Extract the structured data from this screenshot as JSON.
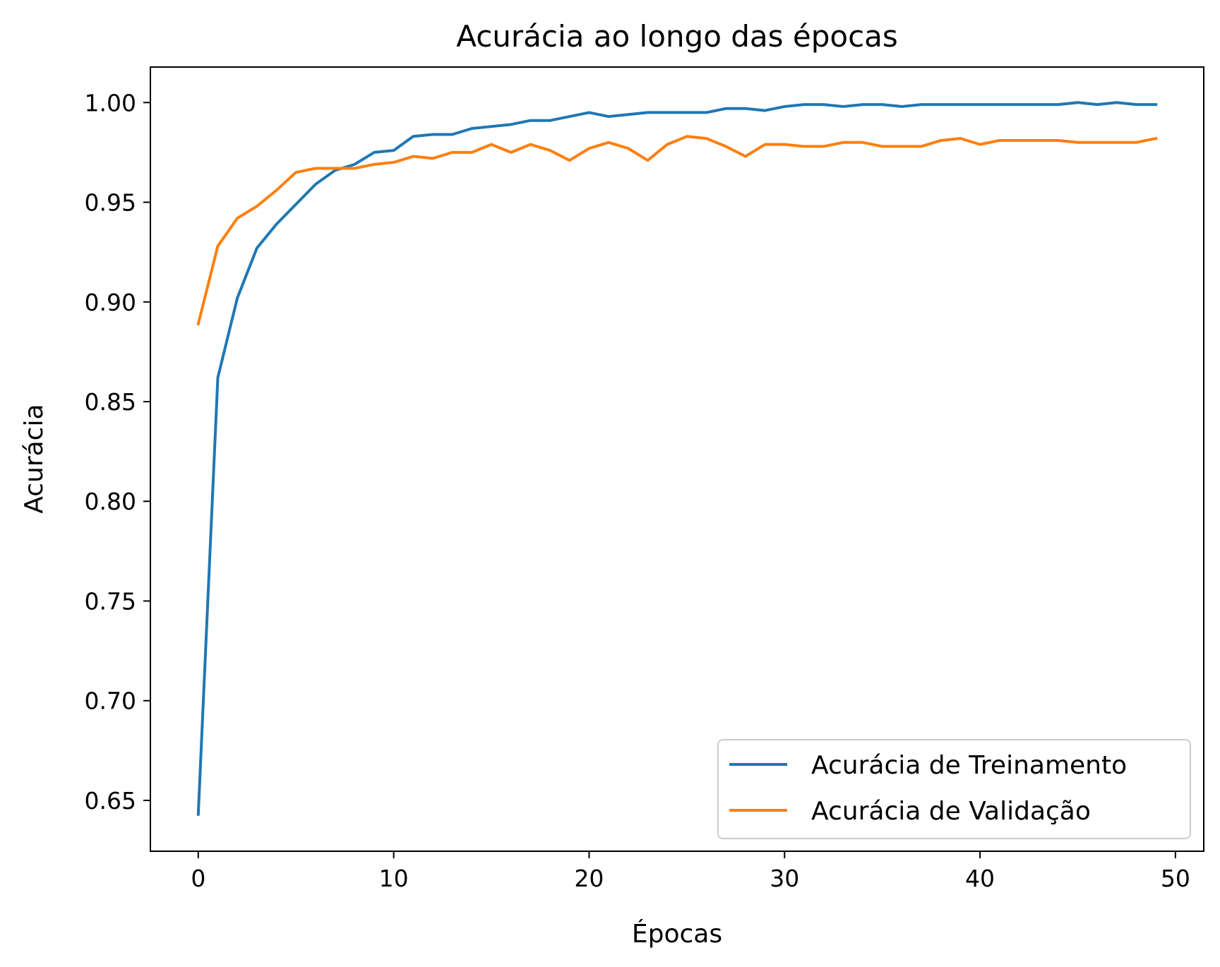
{
  "chart_data": {
    "type": "line",
    "title": "Acurácia ao longo das épocas",
    "xlabel": "Épocas",
    "ylabel": "Acurácia",
    "xlim": [
      -2.45,
      51.45
    ],
    "ylim": [
      0.6245,
      1.0178
    ],
    "xticks": [
      0,
      10,
      20,
      30,
      40,
      50
    ],
    "yticks": [
      0.65,
      0.7,
      0.75,
      0.8,
      0.85,
      0.9,
      0.95,
      1.0
    ],
    "ytick_labels": [
      "0.65",
      "0.70",
      "0.75",
      "0.80",
      "0.85",
      "0.90",
      "0.95",
      "1.00"
    ],
    "grid": false,
    "legend_position": "lower-right",
    "x": [
      0,
      1,
      2,
      3,
      4,
      5,
      6,
      7,
      8,
      9,
      10,
      11,
      12,
      13,
      14,
      15,
      16,
      17,
      18,
      19,
      20,
      21,
      22,
      23,
      24,
      25,
      26,
      27,
      28,
      29,
      30,
      31,
      32,
      33,
      34,
      35,
      36,
      37,
      38,
      39,
      40,
      41,
      42,
      43,
      44,
      45,
      46,
      47,
      48,
      49
    ],
    "series": [
      {
        "name": "Acurácia de Treinamento",
        "color": "#1f77b4",
        "values": [
          0.643,
          0.862,
          0.902,
          0.927,
          0.939,
          0.949,
          0.959,
          0.966,
          0.969,
          0.975,
          0.976,
          0.983,
          0.984,
          0.984,
          0.987,
          0.988,
          0.989,
          0.991,
          0.991,
          0.993,
          0.995,
          0.993,
          0.994,
          0.995,
          0.995,
          0.995,
          0.995,
          0.997,
          0.997,
          0.996,
          0.998,
          0.999,
          0.999,
          0.998,
          0.999,
          0.999,
          0.998,
          0.999,
          0.999,
          0.999,
          0.999,
          0.999,
          0.999,
          0.999,
          0.999,
          1.0,
          0.999,
          1.0,
          0.999,
          0.999
        ]
      },
      {
        "name": "Acurácia de Validação",
        "color": "#ff7f0e",
        "values": [
          0.889,
          0.928,
          0.942,
          0.948,
          0.956,
          0.965,
          0.967,
          0.967,
          0.967,
          0.969,
          0.97,
          0.973,
          0.972,
          0.975,
          0.975,
          0.979,
          0.975,
          0.979,
          0.976,
          0.971,
          0.977,
          0.98,
          0.977,
          0.971,
          0.979,
          0.983,
          0.982,
          0.978,
          0.973,
          0.979,
          0.979,
          0.978,
          0.978,
          0.98,
          0.98,
          0.978,
          0.978,
          0.978,
          0.981,
          0.982,
          0.979,
          0.981,
          0.981,
          0.981,
          0.981,
          0.98,
          0.98,
          0.98,
          0.98,
          0.982
        ]
      }
    ]
  }
}
